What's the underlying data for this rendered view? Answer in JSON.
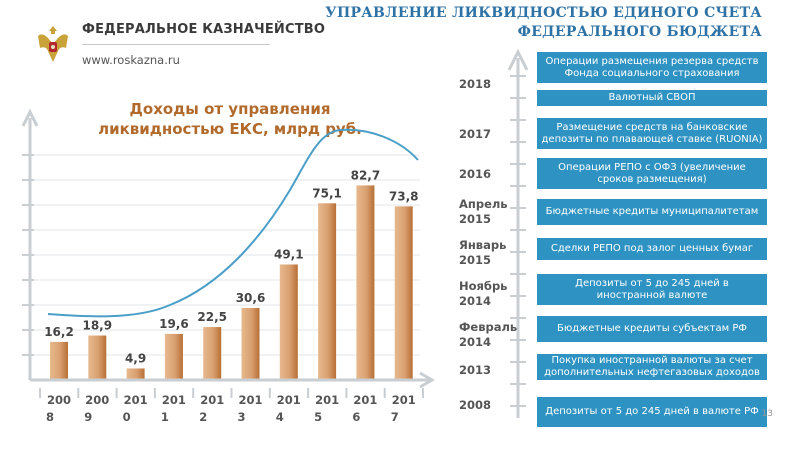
{
  "header": {
    "org_name": "ФЕДЕРАЛЬНОЕ КАЗНАЧЕЙСТВО",
    "url": "www.roskazna.ru",
    "title_line1": "УПРАВЛЕНИЕ ЛИКВИДНОСТЬЮ ЕДИНОГО СЧЕТА",
    "title_line2": "ФЕДЕРАЛЬНОГО БЮДЖЕТА"
  },
  "colors": {
    "bar": "#d9a070",
    "bar_dark": "#b86f35",
    "curve": "#4a9fc8",
    "event_box": "#2e93c2",
    "title": "#2e72a6",
    "chart_title": "#b26a2c",
    "axis": "#c9ced3"
  },
  "chart_data": {
    "type": "bar",
    "title_line1": "Доходы от управления",
    "title_line2": "ликвидностью ЕКС, млрд руб.",
    "categories": [
      "2008",
      "2009",
      "2010",
      "2011",
      "2012",
      "2013",
      "2014",
      "2015",
      "2016",
      "2017"
    ],
    "category_labels": [
      {
        "top": "200",
        "bottom": "8"
      },
      {
        "top": "200",
        "bottom": "9"
      },
      {
        "top": "201",
        "bottom": "0"
      },
      {
        "top": "201",
        "bottom": "1"
      },
      {
        "top": "201",
        "bottom": "2"
      },
      {
        "top": "201",
        "bottom": "3"
      },
      {
        "top": "201",
        "bottom": "4"
      },
      {
        "top": "201",
        "bottom": "5"
      },
      {
        "top": "201",
        "bottom": "6"
      },
      {
        "top": "201",
        "bottom": "7"
      }
    ],
    "values": [
      16.2,
      18.9,
      4.9,
      19.6,
      22.5,
      30.6,
      49.1,
      75.1,
      82.7,
      73.8
    ],
    "value_labels": [
      "16,2",
      "18,9",
      "4,9",
      "19,6",
      "22,5",
      "30,6",
      "49,1",
      "75,1",
      "82,7",
      "73,8"
    ],
    "ylim": [
      0,
      102
    ],
    "grid": true,
    "trend_curve": true
  },
  "timeline": {
    "years": [
      "2018",
      "2017",
      "2016",
      "Апрель 2015",
      "Январь 2015",
      "Ноябрь 2014",
      "Февраль 2014",
      "2013",
      "2008"
    ],
    "year_lines": [
      [
        "2018"
      ],
      [
        "2017"
      ],
      [
        "2016"
      ],
      [
        "Апрель",
        "2015"
      ],
      [
        "Январь",
        "2015"
      ],
      [
        "Ноябрь",
        "2014"
      ],
      [
        "Февраль",
        "2014"
      ],
      [
        "2013"
      ],
      [
        "2008"
      ]
    ],
    "events": [
      "Операции размещения резерва средств Фонда социального страхования",
      "Валютный СВОП",
      "Размещение средств на банковские депозиты по плавающей ставке (RUONIA)",
      "Операции РЕПО с ОФЗ (увеличение сроков размещения)",
      "Бюджетные кредиты муниципалитетам",
      "Сделки РЕПО под залог ценных бумаг",
      "Депозиты от 5 до 245 дней в иностранной валюте",
      "Бюджетные кредиты субъектам РФ",
      "Покупка иностранной валюты за счет дополнительных нефтегазовых доходов",
      "Депозиты от 5 до 245 дней в валюте РФ"
    ]
  },
  "page_number": "13"
}
